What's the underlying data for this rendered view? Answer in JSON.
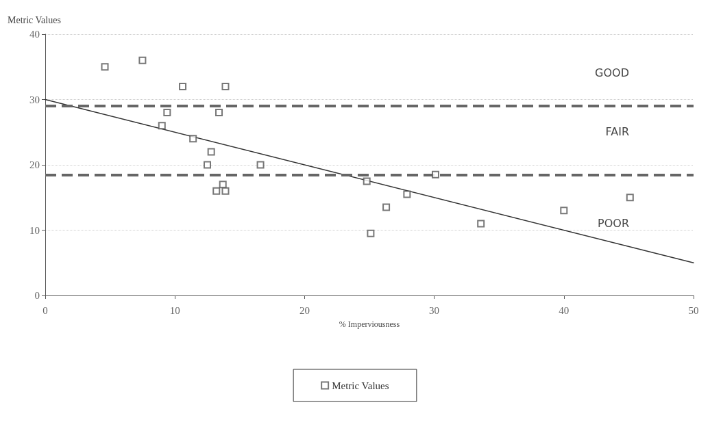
{
  "chart_data": {
    "type": "scatter",
    "ylabel": "Metric Values",
    "xlabel": "% Imperviousness",
    "xlim": [
      0,
      50
    ],
    "xticks": [
      0,
      10,
      20,
      30,
      40,
      50
    ],
    "ylim": [
      0,
      40
    ],
    "yticks": [
      0,
      10,
      20,
      30,
      40
    ],
    "grid": "y",
    "legend": "bottom",
    "marker": "square",
    "series": [
      {
        "name": "Metric Values",
        "color": "#555555",
        "x": [
          4.6,
          7.5,
          10.6,
          13.9,
          9.4,
          13.4,
          9.0,
          11.4,
          12.8,
          12.5,
          16.6,
          13.7,
          13.2,
          13.9,
          24.8,
          25.1,
          26.3,
          27.9,
          30.1,
          33.6,
          40.0,
          45.1
        ],
        "values": [
          35,
          36,
          32,
          32,
          28,
          28,
          26,
          24,
          22,
          20,
          20,
          17,
          16,
          16,
          17.5,
          9.5,
          13.5,
          15.5,
          18.5,
          11,
          13,
          15
        ]
      },
      {
        "type": "line",
        "color": "#333333",
        "x": [
          0,
          50
        ],
        "values": [
          30,
          5
        ],
        "marker": "none",
        "line_style": "solid"
      }
    ],
    "ref_lines": [
      {
        "axis": "y",
        "value": 29,
        "color": "#666666",
        "line_style": "dashed"
      },
      {
        "axis": "y",
        "value": 18.5,
        "color": "#666666",
        "line_style": "dashed"
      }
    ],
    "annotations": [
      "GOOD",
      "FAIR",
      "POOR"
    ]
  }
}
